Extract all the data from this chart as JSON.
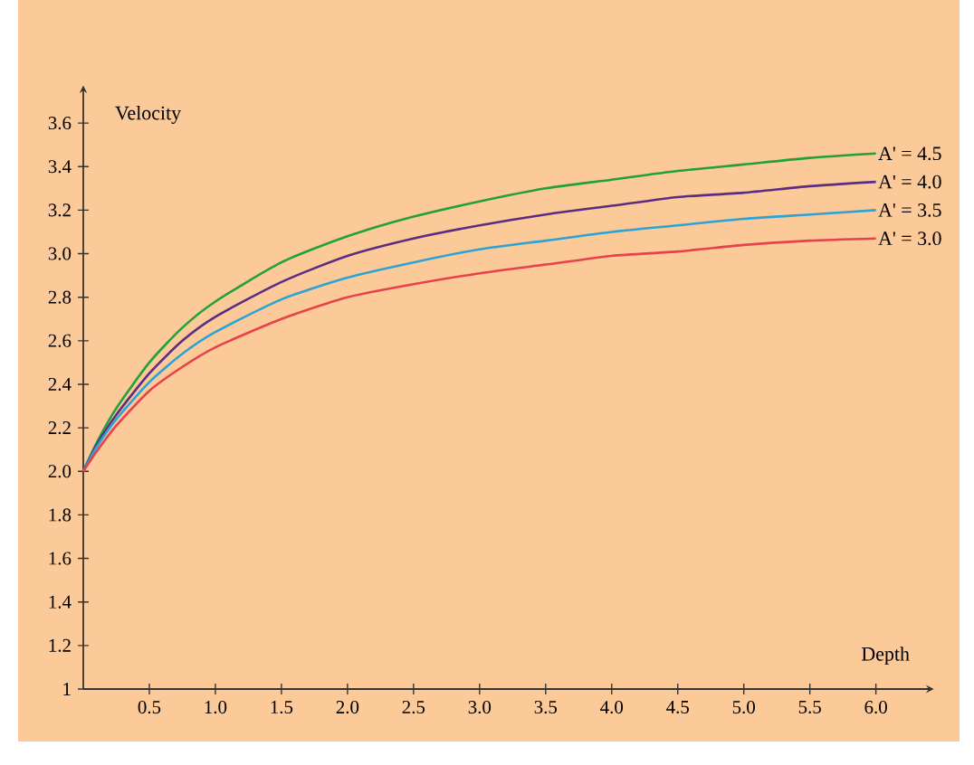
{
  "chart_data": {
    "type": "line",
    "xlabel": "Depth",
    "ylabel": "Velocity",
    "x": [
      0,
      0.1,
      0.25,
      0.5,
      0.75,
      1,
      1.5,
      2,
      2.5,
      3,
      3.5,
      4,
      4.5,
      5,
      5.5,
      6
    ],
    "series": [
      {
        "name": "A' = 4.5",
        "color": "#22a03a",
        "values": [
          2.0,
          2.13,
          2.29,
          2.5,
          2.66,
          2.78,
          2.96,
          3.08,
          3.17,
          3.24,
          3.3,
          3.34,
          3.38,
          3.41,
          3.44,
          3.46
        ]
      },
      {
        "name": "A' = 4.0",
        "color": "#5b2d82",
        "values": [
          2.0,
          2.12,
          2.26,
          2.45,
          2.6,
          2.71,
          2.87,
          2.99,
          3.07,
          3.13,
          3.18,
          3.22,
          3.26,
          3.28,
          3.31,
          3.33
        ]
      },
      {
        "name": "A' = 3.5",
        "color": "#2ba3d6",
        "values": [
          2.0,
          2.11,
          2.24,
          2.41,
          2.54,
          2.64,
          2.79,
          2.89,
          2.96,
          3.02,
          3.06,
          3.1,
          3.13,
          3.16,
          3.18,
          3.2
        ]
      },
      {
        "name": "A' = 3.0",
        "color": "#e8414b",
        "values": [
          2.0,
          2.09,
          2.21,
          2.37,
          2.48,
          2.57,
          2.7,
          2.8,
          2.86,
          2.91,
          2.95,
          2.99,
          3.01,
          3.04,
          3.06,
          3.07
        ]
      }
    ],
    "xlim": [
      0,
      6.4
    ],
    "ylim": [
      1,
      3.75
    ],
    "xticks": [
      0.5,
      {
        "value": 1,
        "label": "1.0"
      },
      1.5,
      {
        "value": 2,
        "label": "2.0"
      },
      2.5,
      {
        "value": 3,
        "label": "3.0"
      },
      3.5,
      {
        "value": 4,
        "label": "4.0"
      },
      4.5,
      {
        "value": 5,
        "label": "5.0"
      },
      5.5,
      {
        "value": 6,
        "label": "6.0"
      }
    ],
    "yticks": [
      1,
      1.2,
      1.4,
      1.6,
      1.8,
      {
        "value": 2,
        "label": "2.0"
      },
      2.2,
      2.4,
      2.6,
      2.8,
      {
        "value": 3,
        "label": "3.0"
      },
      3.2,
      3.4,
      3.6
    ],
    "grid": false,
    "legend": false,
    "marker": "none",
    "line_style": "solid"
  }
}
